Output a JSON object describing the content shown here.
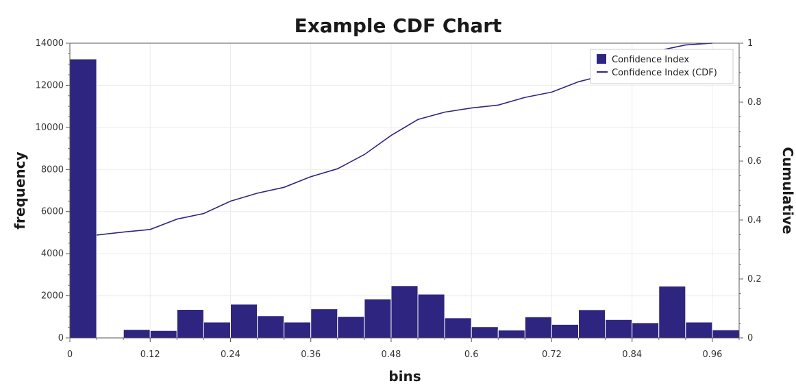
{
  "chart_data": {
    "type": "bar",
    "title": "Example CDF Chart",
    "xlabel": "bins",
    "ylabel": "frequency",
    "y2label": "Cumulative",
    "xlim": [
      0,
      1
    ],
    "ylim": [
      0,
      14000
    ],
    "y2lim": [
      0,
      1
    ],
    "x_ticks": [
      "0",
      "0.12",
      "0.24",
      "0.36",
      "0.48",
      "0.6",
      "0.72",
      "0.84",
      "0.96"
    ],
    "y_ticks": [
      "0",
      "2000",
      "4000",
      "6000",
      "8000",
      "10000",
      "12000",
      "14000"
    ],
    "y2_ticks": [
      "0",
      "0.2",
      "0.4",
      "0.6",
      "0.8",
      "1"
    ],
    "grid": true,
    "legend_position": "top-right",
    "bin_width": 0.04,
    "series": [
      {
        "name": "Confidence Index",
        "type": "bar",
        "color": "#2e2580",
        "bins_start": [
          0,
          0.04,
          0.08,
          0.12,
          0.16,
          0.2,
          0.24,
          0.28,
          0.32,
          0.36,
          0.4,
          0.44,
          0.48,
          0.52,
          0.56,
          0.6,
          0.64,
          0.68,
          0.72,
          0.76,
          0.8,
          0.84,
          0.88,
          0.92,
          0.96
        ],
        "values": [
          13250,
          0,
          400,
          350,
          1350,
          750,
          1600,
          1050,
          750,
          1380,
          1020,
          1850,
          2480,
          2080,
          950,
          530,
          370,
          1000,
          640,
          1340,
          870,
          720,
          2460,
          750,
          380
        ]
      },
      {
        "name": "Confidence Index (CDF)",
        "type": "line",
        "color": "#2e2580",
        "x": [
          0.04,
          0.08,
          0.12,
          0.16,
          0.2,
          0.24,
          0.28,
          0.32,
          0.36,
          0.4,
          0.44,
          0.48,
          0.52,
          0.56,
          0.6,
          0.64,
          0.68,
          0.72,
          0.76,
          0.8,
          0.84,
          0.88,
          0.92,
          0.96
        ],
        "values": [
          0.349,
          0.359,
          0.368,
          0.403,
          0.422,
          0.464,
          0.491,
          0.511,
          0.547,
          0.574,
          0.622,
          0.687,
          0.741,
          0.766,
          0.78,
          0.79,
          0.816,
          0.834,
          0.869,
          0.892,
          0.911,
          0.975,
          0.994,
          1.0
        ]
      }
    ]
  }
}
